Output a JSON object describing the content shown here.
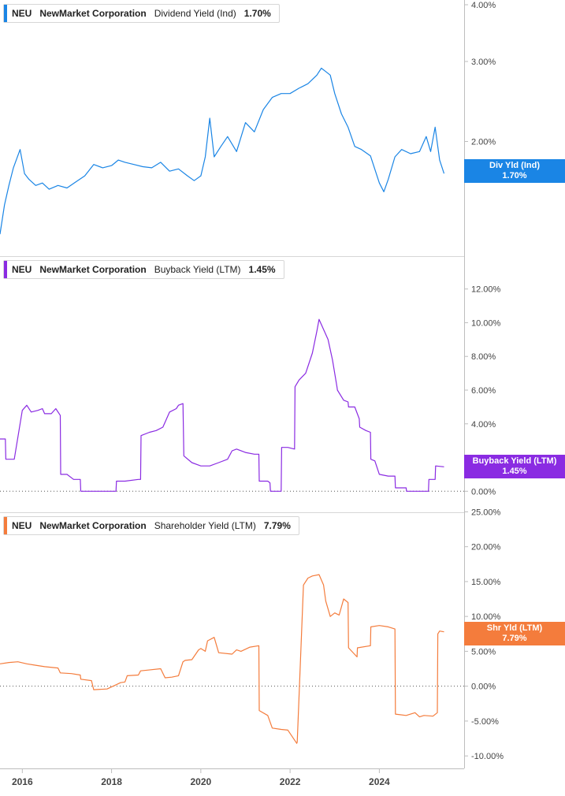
{
  "colors": {
    "dividend": "#1a85e5",
    "buyback": "#8a2be2",
    "shareholder": "#f47c3c",
    "grid": "#d6d6d6",
    "axis_text": "#444444"
  },
  "panels": [
    {
      "ticker": "NEU",
      "company": "NewMarket Corporation",
      "metric": "Dividend Yield (Ind)",
      "value": "1.70%",
      "tag_line1": "Div Yld (Ind)",
      "tag_line2": "1.70%"
    },
    {
      "ticker": "NEU",
      "company": "NewMarket Corporation",
      "metric": "Buyback Yield (LTM)",
      "value": "1.45%",
      "tag_line1": "Buyback Yield (LTM)",
      "tag_line2": "1.45%"
    },
    {
      "ticker": "NEU",
      "company": "NewMarket Corporation",
      "metric": "Shareholder Yield (LTM)",
      "value": "7.79%",
      "tag_line1": "Shr Yld (LTM)",
      "tag_line2": "7.79%"
    }
  ],
  "chart_data": [
    {
      "type": "line",
      "title": "NEU NewMarket Corporation Dividend Yield (Ind) 1.70%",
      "series_name": "Dividend Yield (Ind)",
      "y_scale": "log",
      "ylim": [
        1.15,
        4.0
      ],
      "y_ticks": [
        "4.00%",
        "3.00%",
        "2.00%"
      ],
      "y_tick_values": [
        4.0,
        3.0,
        2.0
      ],
      "xlim": [
        2015.5,
        2025.9
      ],
      "x": [
        2015.5,
        2015.6,
        2015.7,
        2015.8,
        2015.95,
        2016.05,
        2016.15,
        2016.3,
        2016.45,
        2016.6,
        2016.8,
        2017.0,
        2017.2,
        2017.4,
        2017.6,
        2017.8,
        2018.0,
        2018.15,
        2018.3,
        2018.5,
        2018.7,
        2018.9,
        2019.1,
        2019.3,
        2019.5,
        2019.7,
        2019.85,
        2020.0,
        2020.1,
        2020.2,
        2020.3,
        2020.45,
        2020.6,
        2020.8,
        2021.0,
        2021.2,
        2021.4,
        2021.6,
        2021.8,
        2022.0,
        2022.2,
        2022.4,
        2022.6,
        2022.7,
        2022.8,
        2022.9,
        2023.0,
        2023.15,
        2023.3,
        2023.45,
        2023.6,
        2023.8,
        2024.0,
        2024.1,
        2024.2,
        2024.35,
        2024.5,
        2024.7,
        2024.9,
        2025.05,
        2025.15,
        2025.25,
        2025.35,
        2025.45
      ],
      "values": [
        1.25,
        1.45,
        1.6,
        1.75,
        1.92,
        1.7,
        1.65,
        1.6,
        1.62,
        1.57,
        1.6,
        1.58,
        1.63,
        1.68,
        1.78,
        1.75,
        1.77,
        1.82,
        1.8,
        1.78,
        1.76,
        1.75,
        1.8,
        1.72,
        1.74,
        1.68,
        1.64,
        1.68,
        1.85,
        2.25,
        1.85,
        1.95,
        2.05,
        1.9,
        2.2,
        2.1,
        2.35,
        2.5,
        2.55,
        2.55,
        2.62,
        2.68,
        2.8,
        2.9,
        2.85,
        2.8,
        2.55,
        2.3,
        2.15,
        1.95,
        1.92,
        1.86,
        1.62,
        1.55,
        1.65,
        1.85,
        1.92,
        1.88,
        1.9,
        2.05,
        1.9,
        2.15,
        1.82,
        1.7
      ],
      "last_value": 1.7
    },
    {
      "type": "line",
      "title": "NEU NewMarket Corporation Buyback Yield (LTM) 1.45%",
      "series_name": "Buyback Yield (LTM)",
      "ylim": [
        -0.5,
        12.5
      ],
      "y_ticks": [
        "12.00%",
        "10.00%",
        "8.00%",
        "6.00%",
        "4.00%",
        "2.00%",
        "0.00%"
      ],
      "y_tick_values": [
        12,
        10,
        8,
        6,
        4,
        2,
        0
      ],
      "reference_line": 0,
      "xlim": [
        2015.5,
        2025.9
      ],
      "x": [
        2015.5,
        2015.62,
        2015.63,
        2015.75,
        2015.82,
        2016.0,
        2016.1,
        2016.2,
        2016.35,
        2016.45,
        2016.5,
        2016.65,
        2016.75,
        2016.85,
        2016.86,
        2017.0,
        2017.15,
        2017.3,
        2017.31,
        2017.6,
        2017.9,
        2018.1,
        2018.11,
        2018.3,
        2018.6,
        2018.65,
        2018.66,
        2018.85,
        2019.0,
        2019.15,
        2019.3,
        2019.45,
        2019.5,
        2019.6,
        2019.62,
        2019.8,
        2020.0,
        2020.2,
        2020.4,
        2020.6,
        2020.7,
        2020.8,
        2021.0,
        2021.2,
        2021.3,
        2021.31,
        2021.5,
        2021.55,
        2021.56,
        2021.8,
        2021.81,
        2021.95,
        2022.1,
        2022.11,
        2022.2,
        2022.35,
        2022.5,
        2022.6,
        2022.65,
        2022.75,
        2022.85,
        2022.95,
        2023.05,
        2023.06,
        2023.2,
        2023.3,
        2023.31,
        2023.45,
        2023.55,
        2023.56,
        2023.7,
        2023.8,
        2023.81,
        2023.9,
        2024.0,
        2024.2,
        2024.35,
        2024.36,
        2024.6,
        2024.61,
        2024.95,
        2025.1,
        2025.11,
        2025.25,
        2025.26,
        2025.45
      ],
      "values": [
        3.1,
        3.1,
        1.9,
        1.9,
        1.9,
        4.8,
        5.1,
        4.7,
        4.8,
        4.9,
        4.6,
        4.6,
        4.9,
        4.5,
        1.0,
        1.0,
        0.7,
        0.7,
        0.0,
        0.0,
        0.0,
        0.0,
        0.6,
        0.6,
        0.7,
        0.7,
        3.3,
        3.5,
        3.6,
        3.8,
        4.7,
        4.9,
        5.1,
        5.2,
        2.1,
        1.7,
        1.5,
        1.5,
        1.7,
        1.9,
        2.4,
        2.5,
        2.3,
        2.2,
        2.2,
        0.6,
        0.6,
        0.5,
        0.0,
        0.0,
        2.6,
        2.6,
        2.5,
        6.2,
        6.6,
        7.0,
        8.2,
        9.5,
        10.2,
        9.6,
        9.0,
        7.8,
        6.2,
        6.0,
        5.4,
        5.3,
        5.0,
        5.0,
        4.3,
        3.8,
        3.6,
        3.5,
        1.9,
        1.8,
        1.0,
        0.9,
        0.9,
        0.2,
        0.2,
        0.0,
        0.0,
        0.0,
        0.7,
        0.7,
        1.5,
        1.45
      ],
      "last_value": 1.45
    },
    {
      "type": "line",
      "title": "NEU NewMarket Corporation Shareholder Yield (LTM) 7.79%",
      "series_name": "Shareholder Yield (LTM)",
      "ylim": [
        -11.0,
        25.5
      ],
      "y_ticks": [
        "25.00%",
        "20.00%",
        "15.00%",
        "10.00%",
        "5.00%",
        "0.00%",
        "-5.00%",
        "-10.00%"
      ],
      "y_tick_values": [
        25,
        20,
        15,
        10,
        5,
        0,
        -5,
        -10
      ],
      "reference_line": 0,
      "xlim": [
        2015.5,
        2025.9
      ],
      "x": [
        2015.5,
        2015.7,
        2015.9,
        2016.1,
        2016.3,
        2016.5,
        2016.8,
        2016.85,
        2017.1,
        2017.3,
        2017.31,
        2017.55,
        2017.6,
        2017.9,
        2018.1,
        2018.2,
        2018.3,
        2018.35,
        2018.6,
        2018.65,
        2018.8,
        2019.1,
        2019.2,
        2019.35,
        2019.5,
        2019.6,
        2019.65,
        2019.8,
        2019.95,
        2020.0,
        2020.1,
        2020.15,
        2020.3,
        2020.4,
        2020.7,
        2020.8,
        2020.9,
        2021.1,
        2021.3,
        2021.31,
        2021.5,
        2021.6,
        2021.8,
        2021.95,
        2022.15,
        2022.16,
        2022.3,
        2022.4,
        2022.5,
        2022.65,
        2022.75,
        2022.8,
        2022.9,
        2023.0,
        2023.1,
        2023.2,
        2023.3,
        2023.31,
        2023.5,
        2023.51,
        2023.8,
        2023.81,
        2024.0,
        2024.2,
        2024.35,
        2024.36,
        2024.6,
        2024.8,
        2024.9,
        2025.0,
        2025.2,
        2025.3,
        2025.31,
        2025.35,
        2025.45
      ],
      "values": [
        3.2,
        3.4,
        3.5,
        3.2,
        3.0,
        2.8,
        2.6,
        1.9,
        1.8,
        1.6,
        1.0,
        0.8,
        -0.5,
        -0.4,
        0.2,
        0.5,
        0.6,
        1.5,
        1.6,
        2.2,
        2.3,
        2.5,
        1.2,
        1.3,
        1.5,
        3.5,
        3.7,
        3.8,
        5.2,
        5.4,
        5.0,
        6.5,
        7.0,
        4.8,
        4.6,
        5.2,
        5.0,
        5.6,
        5.8,
        -3.5,
        -4.2,
        -6.0,
        -6.2,
        -6.3,
        -8.2,
        -8.0,
        14.5,
        15.5,
        15.8,
        16.0,
        14.5,
        12.2,
        10.0,
        10.5,
        10.2,
        12.5,
        12.0,
        5.5,
        4.2,
        5.5,
        5.8,
        8.5,
        8.7,
        8.5,
        8.2,
        -4.0,
        -4.2,
        -3.8,
        -4.4,
        -4.2,
        -4.3,
        -3.8,
        7.5,
        7.9,
        7.79
      ],
      "last_value": 7.79
    }
  ],
  "x_axis": {
    "ticks": [
      "2016",
      "2018",
      "2020",
      "2022",
      "2024"
    ],
    "tick_values": [
      2016,
      2018,
      2020,
      2022,
      2024
    ]
  }
}
